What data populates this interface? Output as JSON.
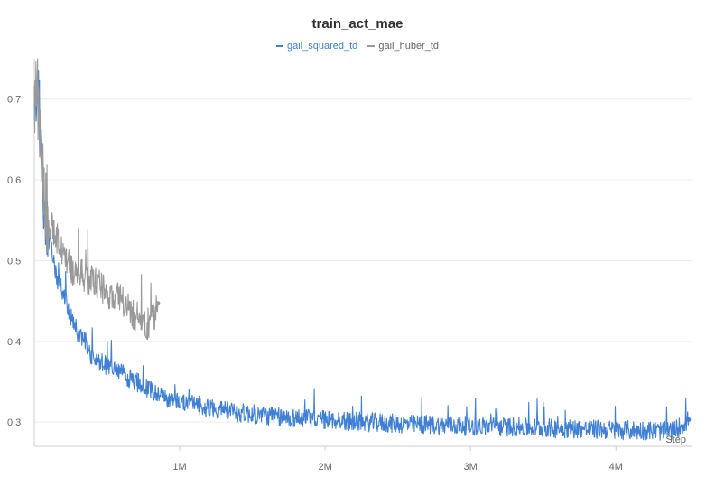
{
  "chart_data": {
    "type": "line",
    "title": "train_act_mae",
    "xlabel": "Step",
    "ylabel": "",
    "xlim": [
      0,
      4520000
    ],
    "ylim": [
      0.27,
      0.75
    ],
    "x_ticks": [
      {
        "value": 1000000,
        "label": "1M"
      },
      {
        "value": 2000000,
        "label": "2M"
      },
      {
        "value": 3000000,
        "label": "3M"
      },
      {
        "value": 4000000,
        "label": "4M"
      }
    ],
    "y_ticks": [
      {
        "value": 0.3,
        "label": "0.3"
      },
      {
        "value": 0.4,
        "label": "0.4"
      },
      {
        "value": 0.5,
        "label": "0.5"
      },
      {
        "value": 0.6,
        "label": "0.6"
      },
      {
        "value": 0.7,
        "label": "0.7"
      }
    ],
    "grid": true,
    "legend_position": "top-center",
    "series": [
      {
        "name": "gail_squared_td",
        "color": "#3f7fd4",
        "x": [
          0,
          30000,
          50000,
          70000,
          100000,
          150000,
          200000,
          250000,
          300000,
          350000,
          400000,
          450000,
          500000,
          550000,
          600000,
          650000,
          700000,
          750000,
          800000,
          850000,
          900000,
          1000000,
          1100000,
          1200000,
          1300000,
          1400000,
          1500000,
          1600000,
          1700000,
          1800000,
          1900000,
          2000000,
          2100000,
          2200000,
          2300000,
          2400000,
          2500000,
          2600000,
          2700000,
          2800000,
          2900000,
          3000000,
          3100000,
          3200000,
          3300000,
          3400000,
          3500000,
          3600000,
          3700000,
          3800000,
          3900000,
          4000000,
          4100000,
          4200000,
          4300000,
          4400000,
          4500000
        ],
        "y": [
          0.69,
          0.72,
          0.6,
          0.56,
          0.53,
          0.48,
          0.46,
          0.43,
          0.41,
          0.4,
          0.38,
          0.375,
          0.37,
          0.365,
          0.36,
          0.355,
          0.35,
          0.345,
          0.34,
          0.335,
          0.33,
          0.325,
          0.322,
          0.318,
          0.315,
          0.312,
          0.31,
          0.308,
          0.306,
          0.305,
          0.304,
          0.303,
          0.302,
          0.301,
          0.3,
          0.299,
          0.298,
          0.297,
          0.297,
          0.296,
          0.296,
          0.295,
          0.295,
          0.294,
          0.294,
          0.293,
          0.293,
          0.292,
          0.292,
          0.291,
          0.291,
          0.29,
          0.29,
          0.29,
          0.289,
          0.289,
          0.303
        ]
      },
      {
        "name": "gail_huber_td",
        "color": "#999999",
        "x": [
          0,
          30000,
          50000,
          70000,
          100000,
          150000,
          200000,
          250000,
          300000,
          350000,
          400000,
          450000,
          500000,
          550000,
          600000,
          650000,
          700000,
          750000,
          800000,
          850000
        ],
        "y": [
          0.7,
          0.71,
          0.61,
          0.58,
          0.55,
          0.53,
          0.51,
          0.49,
          0.485,
          0.48,
          0.475,
          0.47,
          0.46,
          0.455,
          0.45,
          0.44,
          0.43,
          0.425,
          0.42,
          0.447
        ]
      }
    ]
  }
}
